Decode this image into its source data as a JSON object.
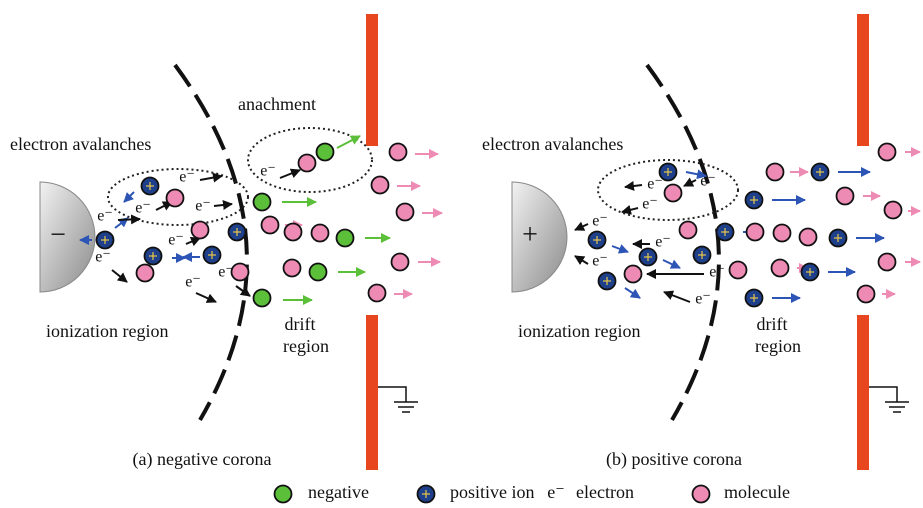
{
  "panels": [
    {
      "caption": "(a) negative corona",
      "electrode_sign": "−",
      "attachment_label": "anachment",
      "avalanche_label": "electron avalanches",
      "ionization_label": "ionization region",
      "drift_label": [
        "drift",
        "region"
      ],
      "electron_labels": [
        "e⁻",
        "e⁻",
        "e⁻",
        "e⁻",
        "e⁻",
        "e⁻",
        "e⁻",
        "e⁻",
        "e⁻"
      ]
    },
    {
      "caption": "(b) positive corona",
      "electrode_sign": "+",
      "avalanche_label": "electron avalanches",
      "ionization_label": "ionization region",
      "drift_label": [
        "drift",
        "region"
      ],
      "electron_labels": [
        "e⁻",
        "e⁻",
        "e⁻",
        "e⁻",
        "e⁻",
        "e⁻",
        "e⁻",
        "e⁻"
      ]
    }
  ],
  "legend": [
    {
      "label": "negative"
    },
    {
      "label": "positive ion"
    },
    {
      "symbol": "e⁻",
      "label": "electron"
    },
    {
      "label": "molecule"
    }
  ]
}
